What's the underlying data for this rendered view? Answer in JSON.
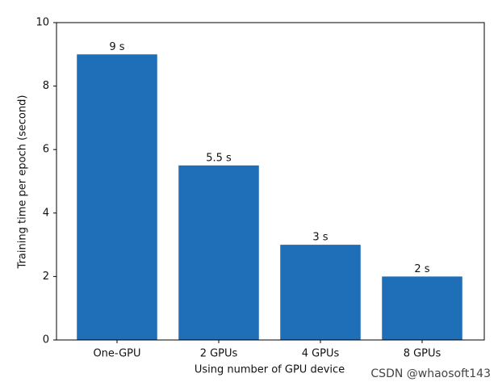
{
  "chart_data": {
    "type": "bar",
    "categories": [
      "One-GPU",
      "2 GPUs",
      "4 GPUs",
      "8 GPUs"
    ],
    "values": [
      9,
      5.5,
      3,
      2
    ],
    "value_labels": [
      "9 s",
      "5.5 s",
      "3 s",
      "2 s"
    ],
    "color": "#1f6eb8",
    "xlabel": "Using number of GPU device",
    "ylabel": "Training time per epoch (second)",
    "ylim": [
      0,
      10
    ],
    "yticks": [
      0,
      2,
      4,
      6,
      8,
      10
    ],
    "grid": false,
    "watermark": "CSDN @whaosoft143"
  }
}
